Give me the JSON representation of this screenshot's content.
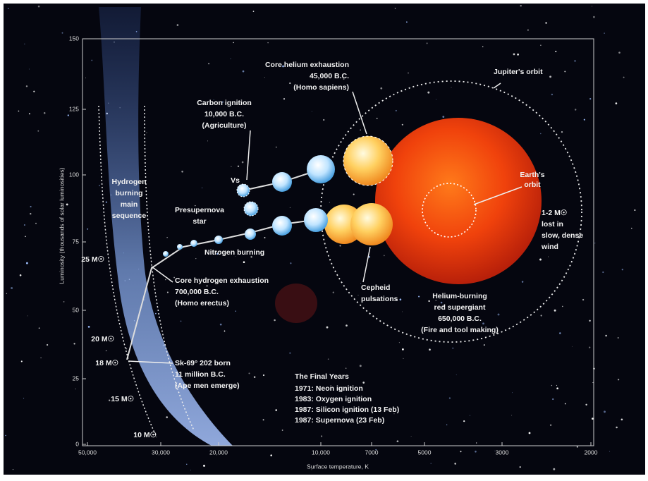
{
  "y_axis": {
    "label": "Luminosity (thousands of solar luminosities)",
    "ticks": [
      "0",
      "25",
      "50",
      "75",
      "100",
      "125",
      "150"
    ]
  },
  "x_axis": {
    "label": "Surface temperature, K",
    "ticks": [
      "50,000",
      "30,000",
      "20,000",
      "10,000",
      "7000",
      "5000",
      "3000",
      "2000"
    ]
  },
  "labels": [
    {
      "lines": [
        "Core helium exhaustion",
        "45,000 B.C.",
        "(Homo sapiens)"
      ]
    },
    {
      "lines": [
        "Jupiter's orbit"
      ]
    },
    {
      "lines": [
        "Carbon ignition",
        "10,000 B.C.",
        "(Agriculture)"
      ]
    },
    {
      "lines": [
        "Hydrogen",
        "burning",
        "main",
        "sequence"
      ]
    },
    {
      "lines": [
        "Vs"
      ]
    },
    {
      "lines": [
        "Presupernova",
        "star"
      ]
    },
    {
      "lines": [
        "Earth's",
        "orbit"
      ]
    },
    {
      "lines": [
        "1-2 M☉",
        "lost in",
        "slow, dense",
        "wind"
      ]
    },
    {
      "lines": [
        "Nitrogen burning"
      ]
    },
    {
      "lines": [
        "25 M☉"
      ]
    },
    {
      "lines": [
        "Core hydrogen exhaustion",
        "700,000 B.C.",
        "(Homo erectus)"
      ]
    },
    {
      "lines": [
        "Cepheid",
        "pulsations"
      ]
    },
    {
      "lines": [
        "Helium-burning",
        "red supergiant",
        "650,000 B.C.",
        "(Fire and tool making)"
      ]
    },
    {
      "lines": [
        "20 M☉"
      ]
    },
    {
      "lines": [
        "18 M☉"
      ]
    },
    {
      "lines": [
        "Sk-69° 202 born",
        "11 million B.C.",
        "(Ape men emerge)"
      ]
    },
    {
      "lines": [
        "15 M☉"
      ]
    },
    {
      "lines": [
        "10 M☉"
      ]
    }
  ],
  "final_years": {
    "title": "The Final Years",
    "items": [
      "1971: Neon ignition",
      "1983: Oxygen ignition",
      "1987: Silicon ignition (13 Feb)",
      "1987: Supernova (23 Feb)"
    ]
  }
}
